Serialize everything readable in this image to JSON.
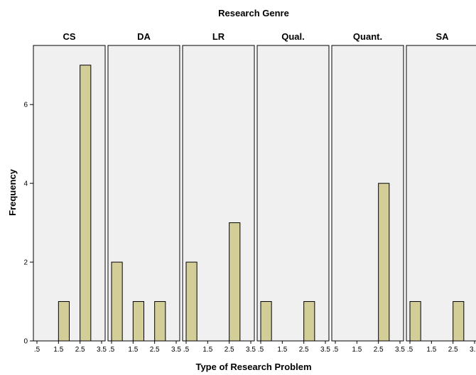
{
  "chart_data": {
    "type": "bar",
    "title": "Research Genre",
    "xlabel": "Type of Research Problem",
    "ylabel": "Frequency",
    "ylim": [
      0,
      7.5
    ],
    "yticks": [
      0,
      2,
      4,
      6
    ],
    "xlim": [
      0.5,
      3.5
    ],
    "xtick_labels": [
      ".5",
      "1.5",
      "2.5",
      "3.5"
    ],
    "bin_edges": [
      0.5,
      1.0,
      1.5,
      2.0,
      2.5,
      3.0,
      3.5
    ],
    "facet_labels": [
      "CS",
      "DA",
      "LR",
      "Qual.",
      "Quant.",
      "SA"
    ],
    "facets": [
      {
        "label": "CS",
        "bars": [
          {
            "x0": 1.5,
            "x1": 2.5,
            "count": 1
          },
          {
            "x0": 2.5,
            "x1": 3.5,
            "count": 7
          }
        ]
      },
      {
        "label": "DA",
        "bars": [
          {
            "x0": 0.5,
            "x1": 1.5,
            "count": 2
          },
          {
            "x0": 1.5,
            "x1": 2.5,
            "count": 1
          },
          {
            "x0": 2.5,
            "x1": 3.5,
            "count": 1
          }
        ]
      },
      {
        "label": "LR",
        "bars": [
          {
            "x0": 0.5,
            "x1": 1.5,
            "count": 2
          },
          {
            "x0": 2.5,
            "x1": 3.5,
            "count": 3
          }
        ]
      },
      {
        "label": "Qual.",
        "bars": [
          {
            "x0": 0.5,
            "x1": 1.5,
            "count": 1
          },
          {
            "x0": 2.5,
            "x1": 3.5,
            "count": 1
          }
        ]
      },
      {
        "label": "Quant.",
        "bars": [
          {
            "x0": 2.5,
            "x1": 3.5,
            "count": 4
          }
        ]
      },
      {
        "label": "SA",
        "bars": [
          {
            "x0": 0.5,
            "x1": 1.5,
            "count": 1
          },
          {
            "x0": 2.5,
            "x1": 3.5,
            "count": 1
          }
        ]
      }
    ],
    "colors": {
      "bar_fill": "#d3ce97",
      "panel_background": "#f0f0f0",
      "outline": "#000000"
    },
    "grid": false,
    "legend": "none"
  }
}
